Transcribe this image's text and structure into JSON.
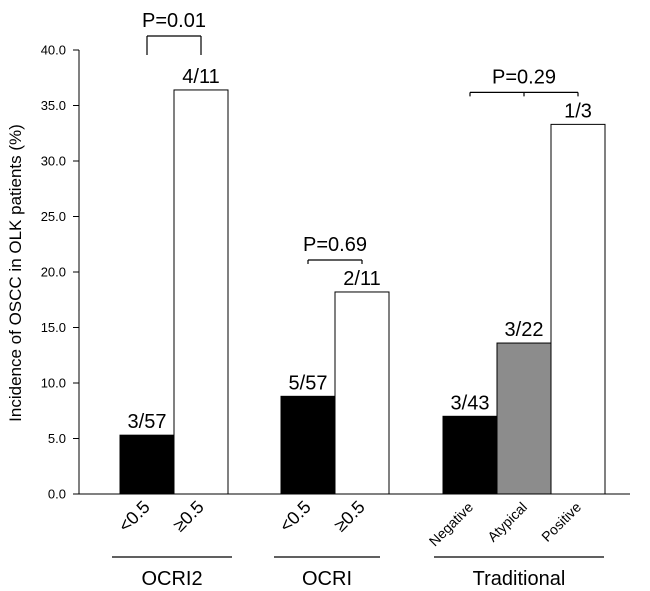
{
  "chart_data": {
    "type": "bar",
    "ylabel": "Incidence of OSCC in OLK patients (%)",
    "ylim": [
      0,
      40
    ],
    "yticks": [
      "0.0",
      "5.0",
      "10.0",
      "15.0",
      "20.0",
      "25.0",
      "30.0",
      "35.0",
      "40.0"
    ],
    "grid": false,
    "groups": [
      {
        "name": "OCRI2",
        "p_value": "P=0.01",
        "bars": [
          {
            "category": "<0.5",
            "value": 5.3,
            "label": "3/57",
            "color": "#000000"
          },
          {
            "category": "≥0.5",
            "value": 36.4,
            "label": "4/11",
            "color": "#ffffff"
          }
        ]
      },
      {
        "name": "OCRI",
        "p_value": "P=0.69",
        "bars": [
          {
            "category": "<0.5",
            "value": 8.8,
            "label": "5/57",
            "color": "#000000"
          },
          {
            "category": "≥0.5",
            "value": 18.2,
            "label": "2/11",
            "color": "#ffffff"
          }
        ]
      },
      {
        "name": "Traditional",
        "p_value": "P=0.29",
        "bars": [
          {
            "category": "Negative",
            "value": 7.0,
            "label": "3/43",
            "color": "#000000"
          },
          {
            "category": "Atypical",
            "value": 13.6,
            "label": "3/22",
            "color": "#8c8c8c"
          },
          {
            "category": "Positive",
            "value": 33.3,
            "label": "1/3",
            "color": "#ffffff"
          }
        ]
      }
    ]
  }
}
